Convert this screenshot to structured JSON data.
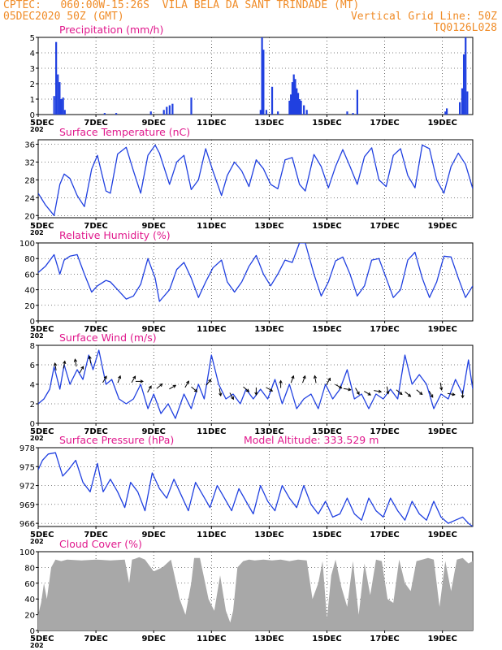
{
  "header": {
    "line1_left": "CPTEC:   060:00W-15:26S  VILA BELA DA SANT TRINDADE (MT)",
    "line2_left": "05DEC2020 50Z (GMT)",
    "line2_right": "Vertical Grid Line: 50Z",
    "line3_right": "TQ0126L028"
  },
  "colors": {
    "header": "#f08c28",
    "title": "#e0188c",
    "series": "#2040e0",
    "cloud": "#a8a8a8",
    "wind_arrow": "#000000"
  },
  "x_labels": [
    "5DEC",
    "7DEC",
    "9DEC",
    "11DEC",
    "13DEC",
    "15DEC",
    "17DEC",
    "19DEC"
  ],
  "year_stub": "202",
  "chart_data": [
    {
      "type": "bar",
      "title": "Precipitation (mm/h)",
      "ylim": [
        0,
        5
      ],
      "yticks": [
        "0",
        "1",
        "2",
        "3",
        "4",
        "5"
      ],
      "bars": [
        [
          0.55,
          1.2
        ],
        [
          0.62,
          4.7
        ],
        [
          0.68,
          2.6
        ],
        [
          0.74,
          2.1
        ],
        [
          0.8,
          1.0
        ],
        [
          0.86,
          1.1
        ],
        [
          0.92,
          0.3
        ],
        [
          2.3,
          0.1
        ],
        [
          2.7,
          0.1
        ],
        [
          3.9,
          0.2
        ],
        [
          4.35,
          0.3
        ],
        [
          4.45,
          0.5
        ],
        [
          4.55,
          0.6
        ],
        [
          4.65,
          0.7
        ],
        [
          5.3,
          1.1
        ],
        [
          7.7,
          0.3
        ],
        [
          7.75,
          5.0
        ],
        [
          7.8,
          4.2
        ],
        [
          7.9,
          0.3
        ],
        [
          8.1,
          1.8
        ],
        [
          8.3,
          0.2
        ],
        [
          8.7,
          0.9
        ],
        [
          8.75,
          1.3
        ],
        [
          8.8,
          2.1
        ],
        [
          8.85,
          2.6
        ],
        [
          8.9,
          2.3
        ],
        [
          8.95,
          1.7
        ],
        [
          9.0,
          1.4
        ],
        [
          9.05,
          1.0
        ],
        [
          9.1,
          0.9
        ],
        [
          9.2,
          0.6
        ],
        [
          9.3,
          0.3
        ],
        [
          10.7,
          0.2
        ],
        [
          10.9,
          0.1
        ],
        [
          11.05,
          1.6
        ],
        [
          14.1,
          0.2
        ],
        [
          14.15,
          0.4
        ],
        [
          14.6,
          0.8
        ],
        [
          14.68,
          1.7
        ],
        [
          14.74,
          3.9
        ],
        [
          14.8,
          5.0
        ],
        [
          14.86,
          1.5
        ]
      ]
    },
    {
      "type": "line",
      "title": "Surface Temperature (nC)",
      "ylim": [
        19.5,
        37
      ],
      "yticks": [
        "20",
        "24",
        "28",
        "32",
        "36"
      ],
      "x": [
        0,
        0.25,
        0.55,
        0.75,
        0.9,
        1.1,
        1.35,
        1.6,
        1.85,
        2.05,
        2.35,
        2.5,
        2.75,
        3.05,
        3.3,
        3.55,
        3.8,
        4.05,
        4.2,
        4.55,
        4.8,
        5.05,
        5.3,
        5.55,
        5.8,
        6.05,
        6.35,
        6.55,
        6.8,
        7.05,
        7.3,
        7.55,
        7.8,
        8.05,
        8.3,
        8.55,
        8.8,
        9.05,
        9.25,
        9.55,
        9.8,
        10.05,
        10.3,
        10.55,
        10.8,
        11.05,
        11.3,
        11.55,
        11.8,
        12.05,
        12.3,
        12.55,
        12.8,
        13.05,
        13.3,
        13.55,
        13.8,
        14.05,
        14.3,
        14.55,
        14.8,
        15.05
      ],
      "values": [
        25.0,
        22.4,
        20.0,
        27.0,
        29.3,
        28.3,
        24.5,
        22.0,
        30.4,
        33.5,
        25.5,
        25.0,
        33.8,
        35.3,
        30.0,
        25.0,
        33.5,
        35.8,
        34.0,
        27.0,
        32.0,
        33.5,
        25.8,
        28.0,
        35.0,
        30.0,
        24.5,
        29.0,
        32.0,
        30.0,
        26.5,
        32.5,
        30.5,
        27.0,
        26.0,
        32.5,
        33.0,
        27.0,
        25.5,
        33.7,
        31.0,
        26.2,
        31.0,
        34.8,
        31.0,
        27.0,
        33.2,
        35.2,
        28.0,
        26.5,
        33.5,
        35.0,
        29.0,
        26.2,
        35.8,
        35.0,
        28.0,
        25.0,
        31.0,
        34.0,
        31.5,
        26.0
      ]
    },
    {
      "type": "line",
      "title": "Relative Humidity (%)",
      "ylim": [
        0,
        100
      ],
      "yticks": [
        "0",
        "20",
        "40",
        "60",
        "80",
        "100"
      ],
      "x": [
        0,
        0.25,
        0.55,
        0.75,
        0.9,
        1.1,
        1.35,
        1.6,
        1.85,
        2.05,
        2.35,
        2.5,
        2.75,
        3.05,
        3.3,
        3.55,
        3.8,
        4.05,
        4.2,
        4.55,
        4.8,
        5.05,
        5.3,
        5.55,
        5.8,
        6.05,
        6.35,
        6.55,
        6.8,
        7.05,
        7.3,
        7.55,
        7.8,
        8.05,
        8.3,
        8.55,
        8.8,
        9.05,
        9.25,
        9.55,
        9.8,
        10.05,
        10.3,
        10.55,
        10.8,
        11.05,
        11.3,
        11.55,
        11.8,
        12.05,
        12.3,
        12.55,
        12.8,
        13.05,
        13.3,
        13.55,
        13.8,
        14.05,
        14.3,
        14.55,
        14.8,
        15.05
      ],
      "values": [
        62,
        70,
        85,
        60,
        78,
        83,
        85,
        60,
        37,
        45,
        52,
        50,
        40,
        28,
        32,
        47,
        80,
        55,
        25,
        40,
        66,
        75,
        55,
        30,
        50,
        68,
        78,
        50,
        37,
        50,
        70,
        84,
        60,
        45,
        60,
        78,
        75,
        100,
        100,
        60,
        32,
        50,
        77,
        82,
        60,
        32,
        45,
        78,
        80,
        55,
        30,
        40,
        78,
        88,
        55,
        30,
        50,
        83,
        82,
        55,
        30,
        45
      ]
    },
    {
      "type": "line",
      "title": "Surface Wind (m/s)",
      "ylim": [
        0,
        8
      ],
      "yticks": [
        "0",
        "2",
        "4",
        "6",
        "8"
      ],
      "x": [
        0,
        0.2,
        0.4,
        0.55,
        0.75,
        0.9,
        1.1,
        1.35,
        1.55,
        1.75,
        1.9,
        2.1,
        2.35,
        2.55,
        2.8,
        3.05,
        3.3,
        3.55,
        3.8,
        4.0,
        4.25,
        4.5,
        4.75,
        5.05,
        5.3,
        5.55,
        5.75,
        6.0,
        6.25,
        6.5,
        6.75,
        7.0,
        7.2,
        7.45,
        7.7,
        7.95,
        8.2,
        8.45,
        8.7,
        8.95,
        9.2,
        9.45,
        9.7,
        9.95,
        10.2,
        10.45,
        10.7,
        10.95,
        11.2,
        11.45,
        11.7,
        11.95,
        12.2,
        12.45,
        12.7,
        12.95,
        13.2,
        13.45,
        13.7,
        13.95,
        14.2,
        14.45,
        14.7,
        14.9,
        15.05
      ],
      "values": [
        2.0,
        2.5,
        3.5,
        5.8,
        3.5,
        6.0,
        4.0,
        5.5,
        4.5,
        7.0,
        5.5,
        7.5,
        4.0,
        4.5,
        2.5,
        2.0,
        2.5,
        4.0,
        1.5,
        3.0,
        1.0,
        2.0,
        0.5,
        3.0,
        1.5,
        4.0,
        2.5,
        7.0,
        4.0,
        2.5,
        3.0,
        2.0,
        3.5,
        2.5,
        3.5,
        2.5,
        4.5,
        2.0,
        4.0,
        1.5,
        2.5,
        3.0,
        1.5,
        4.0,
        2.5,
        3.5,
        5.5,
        2.5,
        3.0,
        1.5,
        3.0,
        2.5,
        3.5,
        2.5,
        7.0,
        4.0,
        5.0,
        4.0,
        1.5,
        3.0,
        2.5,
        4.5,
        3.0,
        6.5,
        3.5
      ],
      "arrows": [
        [
          0.6,
          5.8,
          100
        ],
        [
          0.9,
          6.0,
          80
        ],
        [
          1.3,
          6.2,
          100
        ],
        [
          1.5,
          5.5,
          60
        ],
        [
          1.8,
          6.5,
          100
        ],
        [
          2.3,
          4.5,
          60
        ],
        [
          2.8,
          4.5,
          70
        ],
        [
          3.3,
          4.5,
          60
        ],
        [
          3.5,
          4.3,
          0
        ],
        [
          3.85,
          3.5,
          60
        ],
        [
          4.2,
          3.8,
          40
        ],
        [
          4.65,
          3.7,
          30
        ],
        [
          5.15,
          4.0,
          60
        ],
        [
          5.4,
          3.5,
          -40
        ],
        [
          5.9,
          4.2,
          50
        ],
        [
          6.3,
          3.2,
          -80
        ],
        [
          6.7,
          2.8,
          -60
        ],
        [
          7.2,
          3.5,
          -40
        ],
        [
          7.55,
          3.3,
          -90
        ],
        [
          8.0,
          3.5,
          -30
        ],
        [
          8.4,
          4.0,
          90
        ],
        [
          8.8,
          4.5,
          70
        ],
        [
          9.2,
          4.5,
          70
        ],
        [
          9.6,
          4.5,
          100
        ],
        [
          10.05,
          4.3,
          60
        ],
        [
          10.4,
          3.8,
          -30
        ],
        [
          10.7,
          3.5,
          -10
        ],
        [
          11.05,
          3.3,
          -60
        ],
        [
          11.4,
          3.1,
          -30
        ],
        [
          11.75,
          3.3,
          -10
        ],
        [
          12.1,
          3.4,
          -80
        ],
        [
          12.5,
          3.2,
          -40
        ],
        [
          12.8,
          3.0,
          -40
        ],
        [
          13.2,
          3.2,
          -40
        ],
        [
          13.6,
          3.0,
          -60
        ],
        [
          13.95,
          3.8,
          -80
        ],
        [
          14.3,
          3.0,
          -10
        ],
        [
          14.7,
          3.0,
          -90
        ]
      ]
    },
    {
      "type": "line",
      "title": "Surface Pressure (hPa)",
      "annotation": "Model Altitude: 333.529 m",
      "ylim": [
        965.5,
        978
      ],
      "yticks": [
        "966",
        "969",
        "972",
        "975",
        "978"
      ],
      "x": [
        0,
        0.15,
        0.35,
        0.6,
        0.85,
        1.05,
        1.3,
        1.55,
        1.8,
        2.05,
        2.25,
        2.5,
        2.75,
        3.0,
        3.2,
        3.45,
        3.7,
        3.95,
        4.2,
        4.45,
        4.7,
        4.95,
        5.2,
        5.45,
        5.7,
        5.95,
        6.2,
        6.45,
        6.7,
        6.95,
        7.2,
        7.45,
        7.7,
        7.95,
        8.2,
        8.45,
        8.7,
        8.95,
        9.2,
        9.45,
        9.7,
        9.95,
        10.2,
        10.45,
        10.7,
        10.95,
        11.2,
        11.45,
        11.7,
        11.95,
        12.2,
        12.45,
        12.7,
        12.95,
        13.2,
        13.45,
        13.7,
        13.95,
        14.2,
        14.45,
        14.7,
        14.9,
        15.05
      ],
      "values": [
        974.5,
        976.0,
        977.0,
        977.2,
        973.5,
        974.5,
        976.0,
        972.5,
        971.0,
        975.5,
        971.0,
        973.0,
        971.0,
        968.5,
        972.5,
        971.0,
        968.0,
        974.0,
        971.5,
        970.0,
        973.0,
        970.5,
        968.0,
        972.5,
        970.5,
        968.5,
        972.0,
        970.0,
        968.0,
        971.5,
        969.5,
        967.5,
        972.0,
        969.5,
        968.0,
        972.0,
        970.0,
        968.5,
        972.0,
        969.0,
        967.5,
        969.5,
        967.0,
        967.5,
        970.0,
        967.5,
        966.5,
        970.0,
        968.0,
        967.0,
        970.0,
        968.0,
        966.5,
        969.5,
        967.5,
        966.5,
        969.5,
        967.0,
        966.0,
        966.5,
        967.0,
        966.0,
        965.5
      ]
    },
    {
      "type": "area",
      "title": "Cloud Cover (%)",
      "ylim": [
        0,
        100
      ],
      "yticks": [
        "0",
        "20",
        "40",
        "60",
        "80",
        "100"
      ],
      "x": [
        0,
        0.1,
        0.2,
        0.3,
        0.45,
        0.6,
        0.8,
        1.0,
        1.5,
        2.0,
        2.5,
        3.0,
        3.15,
        3.25,
        3.35,
        3.5,
        3.7,
        4.0,
        4.3,
        4.6,
        4.9,
        5.1,
        5.3,
        5.4,
        5.6,
        5.9,
        6.1,
        6.3,
        6.5,
        6.65,
        6.75,
        6.9,
        7.1,
        7.3,
        7.5,
        7.8,
        8.1,
        8.4,
        8.7,
        9.0,
        9.3,
        9.5,
        9.7,
        9.85,
        10.0,
        10.15,
        10.3,
        10.5,
        10.7,
        10.9,
        11.1,
        11.3,
        11.5,
        11.7,
        11.9,
        12.1,
        12.3,
        12.5,
        12.7,
        12.9,
        13.1,
        13.3,
        13.5,
        13.7,
        13.9,
        14.1,
        14.3,
        14.5,
        14.7,
        14.9,
        15.05
      ],
      "values": [
        20,
        35,
        60,
        40,
        80,
        90,
        88,
        90,
        89,
        90,
        89,
        90,
        60,
        90,
        91,
        93,
        90,
        75,
        80,
        90,
        40,
        20,
        60,
        92,
        92,
        40,
        25,
        70,
        25,
        10,
        25,
        80,
        88,
        90,
        89,
        90,
        89,
        90,
        88,
        90,
        89,
        40,
        60,
        88,
        15,
        70,
        90,
        55,
        30,
        88,
        20,
        85,
        45,
        90,
        88,
        40,
        35,
        90,
        60,
        50,
        88,
        90,
        92,
        90,
        30,
        88,
        50,
        90,
        92,
        85,
        88
      ]
    }
  ]
}
